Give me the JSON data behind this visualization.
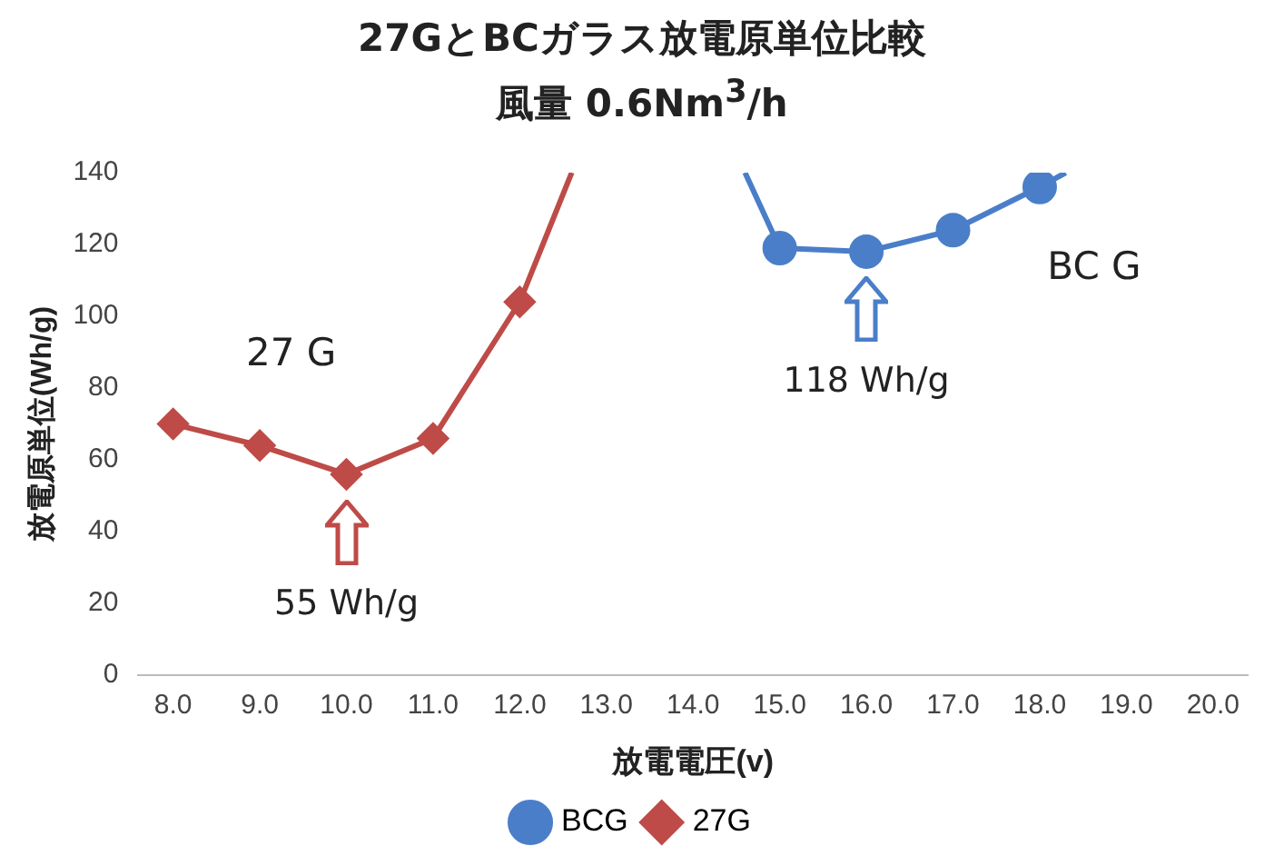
{
  "chart_data": {
    "type": "line",
    "title": "27GとBCガラス放電原単位比較",
    "subtitle": "風量 0.6Nm$^{3}$/h",
    "xlabel": "放電電圧(v)",
    "ylabel": "放電原単位(Wh/g)",
    "xlim": [
      7.6,
      20.4
    ],
    "xticks": [
      {
        "value": 8,
        "label": "8.0"
      },
      {
        "value": 9,
        "label": "9.0"
      },
      {
        "value": 10,
        "label": "10.0"
      },
      {
        "value": 11,
        "label": "11.0"
      },
      {
        "value": 12,
        "label": "12.0"
      },
      {
        "value": 13,
        "label": "13.0"
      },
      {
        "value": 14,
        "label": "14.0"
      },
      {
        "value": 15,
        "label": "15.0"
      },
      {
        "value": 16,
        "label": "16.0"
      },
      {
        "value": 17,
        "label": "17.0"
      },
      {
        "value": 18,
        "label": "18.0"
      },
      {
        "value": 19,
        "label": "19.0"
      },
      {
        "value": 20,
        "label": "20.0"
      }
    ],
    "ylim": [
      0,
      140
    ],
    "yticks": [
      0,
      20,
      40,
      60,
      80,
      100,
      120,
      140
    ],
    "grid": false,
    "legend": "bottom",
    "series": [
      {
        "name": "BCG",
        "color": "#4a7ec9",
        "marker": "circle",
        "x": [
          14.6,
          15,
          16,
          17,
          18,
          18.3
        ],
        "values": [
          140,
          119,
          118,
          124,
          136,
          140
        ]
      },
      {
        "name": "27G",
        "color": "#be4b48",
        "marker": "diamond",
        "x": [
          8,
          9,
          10,
          11,
          12,
          12.6
        ],
        "values": [
          70,
          64,
          56,
          66,
          104,
          140
        ]
      }
    ],
    "annotations": [
      "BC G",
      "27 G",
      "118 Wh/g",
      "55 Wh/g"
    ]
  }
}
